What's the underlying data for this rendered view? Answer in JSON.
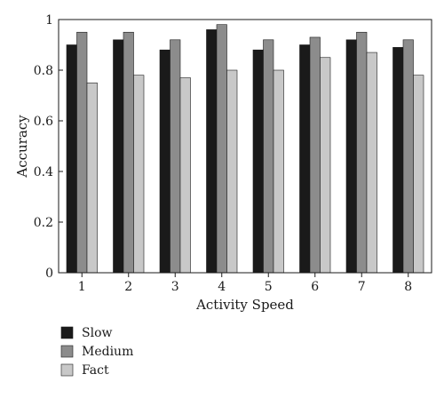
{
  "chart_data": {
    "type": "bar",
    "xlabel": "Activity Speed",
    "ylabel": "Accuracy",
    "ylim": [
      0,
      1
    ],
    "yticks": [
      "0",
      "0.2",
      "0.4",
      "0.6",
      "0.8",
      "1"
    ],
    "categories": [
      "1",
      "2",
      "3",
      "4",
      "5",
      "6",
      "7",
      "8"
    ],
    "series": [
      {
        "name": "Slow",
        "color": "#1a1a1a",
        "values": [
          0.9,
          0.92,
          0.88,
          0.96,
          0.88,
          0.9,
          0.92,
          0.89
        ]
      },
      {
        "name": "Medium",
        "color": "#8c8c8c",
        "values": [
          0.95,
          0.95,
          0.92,
          0.98,
          0.92,
          0.93,
          0.95,
          0.92
        ]
      },
      {
        "name": "Fact",
        "color": "#c8c8c8",
        "values": [
          0.75,
          0.78,
          0.77,
          0.8,
          0.8,
          0.85,
          0.87,
          0.78
        ]
      }
    ],
    "grid": false,
    "legend": "bottom-left"
  }
}
